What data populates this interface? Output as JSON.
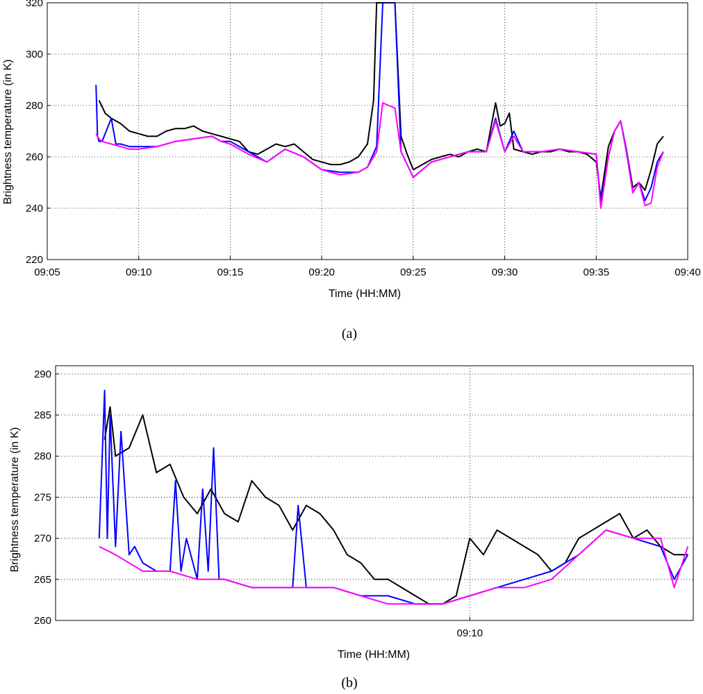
{
  "chart_data": [
    {
      "type": "line",
      "caption": "(a)",
      "xlabel": "Time (HH:MM)",
      "ylabel": "Brightness temperature (in K)",
      "x_unit": "HH:MM",
      "xlim": [
        "09:05",
        "09:40"
      ],
      "ylim": [
        220,
        320
      ],
      "xticks": [
        "09:05",
        "09:10",
        "09:15",
        "09:20",
        "09:25",
        "09:30",
        "09:35",
        "09:40"
      ],
      "yticks": [
        220,
        240,
        260,
        280,
        300,
        320
      ],
      "grid": true,
      "series": [
        {
          "color": "#000000",
          "x": [
            "09:07:50",
            "09:08:10",
            "09:08:30",
            "09:09:00",
            "09:09:30",
            "09:10:00",
            "09:10:30",
            "09:11:00",
            "09:11:30",
            "09:12:00",
            "09:12:30",
            "09:13:00",
            "09:13:30",
            "09:14:00",
            "09:14:30",
            "09:15:00",
            "09:15:30",
            "09:16:00",
            "09:16:30",
            "09:17:00",
            "09:17:30",
            "09:18:00",
            "09:18:30",
            "09:19:00",
            "09:19:30",
            "09:20:00",
            "09:20:30",
            "09:21:00",
            "09:21:30",
            "09:22:00",
            "09:22:30",
            "09:22:50",
            "09:23:00",
            "09:23:20",
            "09:23:40",
            "09:23:50",
            "09:24:00",
            "09:24:20",
            "09:24:40",
            "09:25:00",
            "09:25:30",
            "09:26:00",
            "09:26:30",
            "09:27:00",
            "09:27:30",
            "09:28:00",
            "09:28:30",
            "09:29:00",
            "09:29:30",
            "09:29:45",
            "09:30:00",
            "09:30:15",
            "09:30:30",
            "09:31:00",
            "09:31:30",
            "09:32:00",
            "09:32:30",
            "09:33:00",
            "09:33:30",
            "09:34:00",
            "09:34:30",
            "09:35:00",
            "09:35:15",
            "09:35:40",
            "09:36:00",
            "09:36:20",
            "09:36:40",
            "09:37:00",
            "09:37:20",
            "09:37:40",
            "09:38:00",
            "09:38:20",
            "09:38:40"
          ],
          "y": [
            282,
            277,
            275,
            273,
            270,
            269,
            268,
            268,
            270,
            271,
            271,
            272,
            270,
            269,
            268,
            267,
            266,
            262,
            261,
            263,
            265,
            264,
            265,
            262,
            259,
            258,
            257,
            257,
            258,
            260,
            265,
            282,
            320,
            320,
            320,
            320,
            320,
            268,
            261,
            255,
            257,
            259,
            260,
            261,
            260,
            262,
            263,
            262,
            281,
            272,
            273,
            277,
            263,
            262,
            261,
            262,
            262,
            263,
            262,
            262,
            261,
            258,
            244,
            264,
            270,
            274,
            262,
            248,
            250,
            247,
            255,
            265,
            268
          ]
        },
        {
          "color": "#0000ff",
          "x": [
            "09:07:40",
            "09:07:45",
            "09:07:50",
            "09:08:00",
            "09:08:30",
            "09:08:45",
            "09:09:00",
            "09:09:30",
            "09:10:00",
            "09:11:00",
            "09:12:00",
            "09:13:00",
            "09:14:00",
            "09:14:30",
            "09:15:00",
            "09:16:00",
            "09:17:00",
            "09:18:00",
            "09:19:00",
            "09:20:00",
            "09:21:00",
            "09:22:00",
            "09:22:30",
            "09:23:00",
            "09:23:20",
            "09:23:40",
            "09:24:00",
            "09:24:20",
            "09:25:00",
            "09:26:00",
            "09:27:00",
            "09:28:00",
            "09:29:00",
            "09:29:30",
            "09:30:00",
            "09:30:30",
            "09:31:00",
            "09:32:00",
            "09:33:00",
            "09:34:00",
            "09:35:00",
            "09:35:15",
            "09:35:40",
            "09:36:00",
            "09:36:20",
            "09:36:40",
            "09:37:00",
            "09:37:20",
            "09:37:40",
            "09:38:00",
            "09:38:20",
            "09:38:40"
          ],
          "y": [
            288,
            268,
            266,
            266,
            275,
            265,
            265,
            264,
            264,
            264,
            266,
            267,
            268,
            266,
            266,
            262,
            258,
            263,
            260,
            255,
            254,
            254,
            256,
            264,
            320,
            320,
            320,
            262,
            252,
            258,
            260,
            262,
            262,
            275,
            262,
            270,
            262,
            262,
            263,
            262,
            261,
            242,
            260,
            270,
            274,
            262,
            246,
            250,
            243,
            248,
            258,
            262
          ]
        },
        {
          "color": "#ff00ff",
          "x": [
            "09:07:40",
            "09:07:50",
            "09:08:00",
            "09:08:30",
            "09:09:00",
            "09:09:30",
            "09:10:00",
            "09:11:00",
            "09:12:00",
            "09:13:00",
            "09:14:00",
            "09:14:30",
            "09:15:00",
            "09:16:00",
            "09:17:00",
            "09:18:00",
            "09:19:00",
            "09:20:00",
            "09:21:00",
            "09:22:00",
            "09:22:30",
            "09:23:00",
            "09:23:20",
            "09:23:40",
            "09:24:00",
            "09:24:20",
            "09:25:00",
            "09:26:00",
            "09:27:00",
            "09:28:00",
            "09:29:00",
            "09:29:30",
            "09:30:00",
            "09:30:30",
            "09:31:00",
            "09:32:00",
            "09:33:00",
            "09:34:00",
            "09:35:00",
            "09:35:15",
            "09:35:40",
            "09:36:00",
            "09:36:20",
            "09:36:40",
            "09:37:00",
            "09:37:20",
            "09:37:40",
            "09:38:00",
            "09:38:20",
            "09:38:40"
          ],
          "y": [
            269,
            267,
            266,
            265,
            264,
            263,
            263,
            264,
            266,
            267,
            268,
            266,
            265,
            261,
            258,
            263,
            260,
            255,
            253,
            254,
            256,
            262,
            281,
            280,
            279,
            262,
            252,
            258,
            260,
            262,
            262,
            274,
            262,
            268,
            262,
            262,
            263,
            262,
            261,
            240,
            260,
            270,
            274,
            261,
            246,
            250,
            241,
            242,
            256,
            262
          ]
        }
      ]
    },
    {
      "type": "line",
      "caption": "(b)",
      "xlabel": "Time (HH:MM)",
      "ylabel": "Brightness temperature (in K)",
      "x_unit": "HH:MM",
      "xlim": [
        "09:07:28",
        "09:11:22"
      ],
      "ylim": [
        260,
        291
      ],
      "xticks": [
        "09:10"
      ],
      "yticks": [
        260,
        265,
        270,
        275,
        280,
        285,
        290
      ],
      "grid": true,
      "series": [
        {
          "color": "#000000",
          "x": [
            "09:07:46",
            "09:07:48",
            "09:07:50",
            "09:07:55",
            "09:08:00",
            "09:08:05",
            "09:08:10",
            "09:08:15",
            "09:08:20",
            "09:08:25",
            "09:08:30",
            "09:08:35",
            "09:08:40",
            "09:08:45",
            "09:08:50",
            "09:08:55",
            "09:09:00",
            "09:09:05",
            "09:09:10",
            "09:09:15",
            "09:09:20",
            "09:09:25",
            "09:09:30",
            "09:09:35",
            "09:09:40",
            "09:09:45",
            "09:09:50",
            "09:09:55",
            "09:10:00",
            "09:10:05",
            "09:10:10",
            "09:10:15",
            "09:10:20",
            "09:10:25",
            "09:10:30",
            "09:10:35",
            "09:10:40",
            "09:10:45",
            "09:10:50",
            "09:10:55",
            "09:11:00",
            "09:11:05",
            "09:11:10",
            "09:11:15",
            "09:11:20"
          ],
          "y": [
            282,
            286,
            280,
            281,
            285,
            278,
            279,
            275,
            273,
            276,
            273,
            272,
            277,
            275,
            274,
            271,
            274,
            273,
            271,
            268,
            267,
            265,
            265,
            264,
            263,
            262,
            262,
            263,
            270,
            268,
            271,
            270,
            269,
            268,
            266,
            267,
            270,
            271,
            272,
            273,
            270,
            271,
            269,
            268,
            268
          ]
        },
        {
          "color": "#0000ff",
          "x": [
            "09:07:44",
            "09:07:46",
            "09:07:47",
            "09:07:48",
            "09:07:50",
            "09:07:52",
            "09:07:55",
            "09:07:57",
            "09:08:00",
            "09:08:05",
            "09:08:10",
            "09:08:12",
            "09:08:14",
            "09:08:16",
            "09:08:20",
            "09:08:22",
            "09:08:24",
            "09:08:26",
            "09:08:28",
            "09:08:30",
            "09:08:40",
            "09:08:50",
            "09:08:55",
            "09:08:57",
            "09:09:00",
            "09:09:10",
            "09:09:20",
            "09:09:30",
            "09:09:40",
            "09:09:50",
            "09:10:00",
            "09:10:10",
            "09:10:20",
            "09:10:30",
            "09:10:40",
            "09:10:50",
            "09:11:00",
            "09:11:10",
            "09:11:15",
            "09:11:20"
          ],
          "y": [
            270,
            288,
            270,
            285,
            269,
            283,
            268,
            269,
            267,
            266,
            266,
            277,
            266,
            270,
            265,
            276,
            266,
            281,
            265,
            265,
            264,
            264,
            264,
            274,
            264,
            264,
            263,
            263,
            262,
            262,
            263,
            264,
            265,
            266,
            268,
            271,
            270,
            269,
            265,
            268
          ]
        },
        {
          "color": "#ff00ff",
          "x": [
            "09:07:44",
            "09:07:50",
            "09:08:00",
            "09:08:10",
            "09:08:20",
            "09:08:30",
            "09:08:40",
            "09:08:50",
            "09:09:00",
            "09:09:10",
            "09:09:20",
            "09:09:30",
            "09:09:40",
            "09:09:50",
            "09:10:00",
            "09:10:10",
            "09:10:20",
            "09:10:30",
            "09:10:40",
            "09:10:50",
            "09:11:00",
            "09:11:10",
            "09:11:15",
            "09:11:20"
          ],
          "y": [
            269,
            268,
            266,
            266,
            265,
            265,
            264,
            264,
            264,
            264,
            263,
            262,
            262,
            262,
            263,
            264,
            264,
            265,
            268,
            271,
            270,
            270,
            264,
            269
          ]
        }
      ]
    }
  ]
}
